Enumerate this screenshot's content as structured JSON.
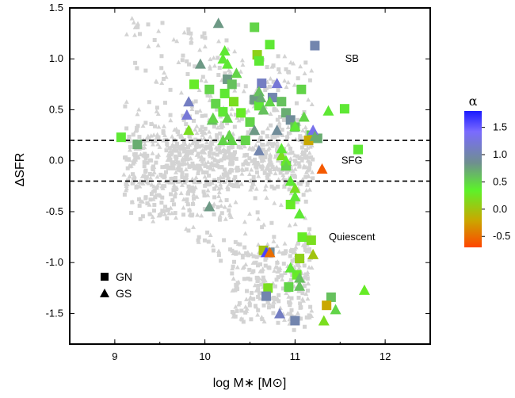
{
  "chart_data": {
    "type": "scatter",
    "xlabel": "log M∗ [M⊙]",
    "ylabel": "ΔSFR",
    "xlim": [
      8.5,
      12.5
    ],
    "ylim": [
      -1.8,
      1.5
    ],
    "x_ticks": [
      "9",
      "10",
      "11",
      "12"
    ],
    "y_ticks": [
      "1.5",
      "1.0",
      "0.5",
      "0.0",
      "-0.5",
      "-1.0",
      "-1.5"
    ],
    "hlines": [
      0.2,
      -0.2
    ],
    "region_labels": [
      {
        "text": "SB",
        "x": 11.5,
        "y": 1.0
      },
      {
        "text": "SFG",
        "x": 11.5,
        "y": 0.0
      },
      {
        "text": "Quiescent",
        "x": 11.5,
        "y": -0.75
      }
    ],
    "legend": [
      {
        "marker": "square",
        "label": "GN"
      },
      {
        "marker": "triangle",
        "label": "GS"
      }
    ],
    "colorbar": {
      "title": "α",
      "range": [
        -0.7,
        1.8
      ],
      "ticks": [
        "1.5",
        "1.0",
        "0.5",
        "0.0",
        "-0.5"
      ],
      "tick_values": [
        1.5,
        1.0,
        0.5,
        0.0,
        -0.5
      ],
      "colors": [
        "#ff4500",
        "#c9a800",
        "#5cf22a",
        "#6f8f8f",
        "#7a6aff",
        "#1a1aff"
      ]
    },
    "background_points": {
      "color": "#d3d3d3",
      "description_free": true
    },
    "series": [
      {
        "name": "GN",
        "marker": "square",
        "points": [
          [
            9.07,
            0.23,
            0.4
          ],
          [
            9.25,
            0.16,
            0.7
          ],
          [
            9.88,
            0.75,
            0.3
          ],
          [
            10.05,
            0.7,
            0.5
          ],
          [
            10.12,
            0.56,
            0.5
          ],
          [
            10.2,
            0.48,
            0.4
          ],
          [
            10.25,
            0.8,
            0.8
          ],
          [
            10.3,
            0.75,
            0.6
          ],
          [
            10.32,
            0.58,
            0.2
          ],
          [
            10.4,
            0.47,
            0.3
          ],
          [
            10.22,
            0.66,
            0.4
          ],
          [
            10.55,
            1.31,
            0.5
          ],
          [
            10.58,
            1.04,
            0.1
          ],
          [
            10.6,
            0.98,
            0.4
          ],
          [
            10.63,
            0.76,
            1.1
          ],
          [
            10.72,
            1.14,
            0.4
          ],
          [
            10.75,
            0.62,
            1.0
          ],
          [
            10.55,
            0.6,
            0.8
          ],
          [
            10.6,
            0.54,
            0.4
          ],
          [
            10.5,
            0.38,
            0.5
          ],
          [
            10.45,
            0.2,
            0.5
          ],
          [
            10.85,
            0.58,
            0.6
          ],
          [
            10.9,
            0.47,
            0.7
          ],
          [
            10.95,
            0.4,
            0.9
          ],
          [
            11.0,
            0.33,
            0.6
          ],
          [
            11.22,
            1.13,
            1.0
          ],
          [
            11.07,
            0.7,
            0.5
          ],
          [
            11.18,
            0.25,
            0.5
          ],
          [
            11.25,
            0.22,
            0.7
          ],
          [
            11.15,
            0.2,
            -0.2
          ],
          [
            11.55,
            0.51,
            0.4
          ],
          [
            11.7,
            0.11,
            0.4
          ],
          [
            10.9,
            -0.05,
            0.6
          ],
          [
            10.95,
            -0.43,
            0.3
          ],
          [
            11.08,
            -0.75,
            0.3
          ],
          [
            11.18,
            -0.78,
            0.2
          ],
          [
            10.65,
            -0.88,
            0.0
          ],
          [
            10.72,
            -0.9,
            0.9
          ],
          [
            11.05,
            -0.96,
            0.1
          ],
          [
            11.02,
            -1.12,
            0.3
          ],
          [
            10.7,
            -1.25,
            0.2
          ],
          [
            10.68,
            -1.33,
            1.0
          ],
          [
            10.93,
            -1.24,
            0.5
          ],
          [
            11.4,
            -1.34,
            0.6
          ],
          [
            11.35,
            -1.42,
            -0.2
          ],
          [
            11.0,
            -1.57,
            1.0
          ]
        ]
      },
      {
        "name": "GS",
        "marker": "triangle",
        "points": [
          [
            10.15,
            1.35,
            0.8
          ],
          [
            10.22,
            1.08,
            0.4
          ],
          [
            10.2,
            1.0,
            0.4
          ],
          [
            9.95,
            0.95,
            0.8
          ],
          [
            10.25,
            0.95,
            0.4
          ],
          [
            10.35,
            0.86,
            0.5
          ],
          [
            9.82,
            0.58,
            1.1
          ],
          [
            9.8,
            0.45,
            1.2
          ],
          [
            9.82,
            0.3,
            0.2
          ],
          [
            10.08,
            0.4,
            0.6
          ],
          [
            10.09,
            0.42,
            0.5
          ],
          [
            10.25,
            0.42,
            0.5
          ],
          [
            10.27,
            0.25,
            0.5
          ],
          [
            10.2,
            0.2,
            0.5
          ],
          [
            10.3,
            0.2,
            0.5
          ],
          [
            10.6,
            0.68,
            0.6
          ],
          [
            10.62,
            0.62,
            0.7
          ],
          [
            10.8,
            0.76,
            1.2
          ],
          [
            10.65,
            0.5,
            0.6
          ],
          [
            10.72,
            0.58,
            0.5
          ],
          [
            10.85,
            0.05,
            0.2
          ],
          [
            10.9,
            0.0,
            0.3
          ],
          [
            10.8,
            0.3,
            0.9
          ],
          [
            10.85,
            0.12,
            0.4
          ],
          [
            11.0,
            0.34,
            0.4
          ],
          [
            11.1,
            0.43,
            0.5
          ],
          [
            11.2,
            0.3,
            1.3
          ],
          [
            11.22,
            0.24,
            0.7
          ],
          [
            11.37,
            0.49,
            0.4
          ],
          [
            11.3,
            -0.08,
            -0.6
          ],
          [
            10.55,
            0.3,
            0.8
          ],
          [
            10.6,
            0.1,
            1.0
          ],
          [
            10.9,
            -0.05,
            0.5
          ],
          [
            11.0,
            -0.27,
            0.2
          ],
          [
            11.0,
            -0.35,
            0.4
          ],
          [
            11.05,
            -0.52,
            0.4
          ],
          [
            10.95,
            -0.2,
            0.4
          ],
          [
            10.05,
            -0.45,
            0.8
          ],
          [
            10.68,
            -0.9,
            1.6
          ],
          [
            10.72,
            -0.9,
            -0.5
          ],
          [
            11.2,
            -0.92,
            0.0
          ],
          [
            10.95,
            -1.05,
            0.4
          ],
          [
            11.05,
            -1.15,
            0.6
          ],
          [
            11.05,
            -1.23,
            0.6
          ],
          [
            10.83,
            -1.5,
            1.1
          ],
          [
            11.32,
            -1.57,
            0.2
          ],
          [
            11.45,
            -1.46,
            0.5
          ],
          [
            11.77,
            -1.27,
            0.3
          ]
        ]
      }
    ]
  }
}
